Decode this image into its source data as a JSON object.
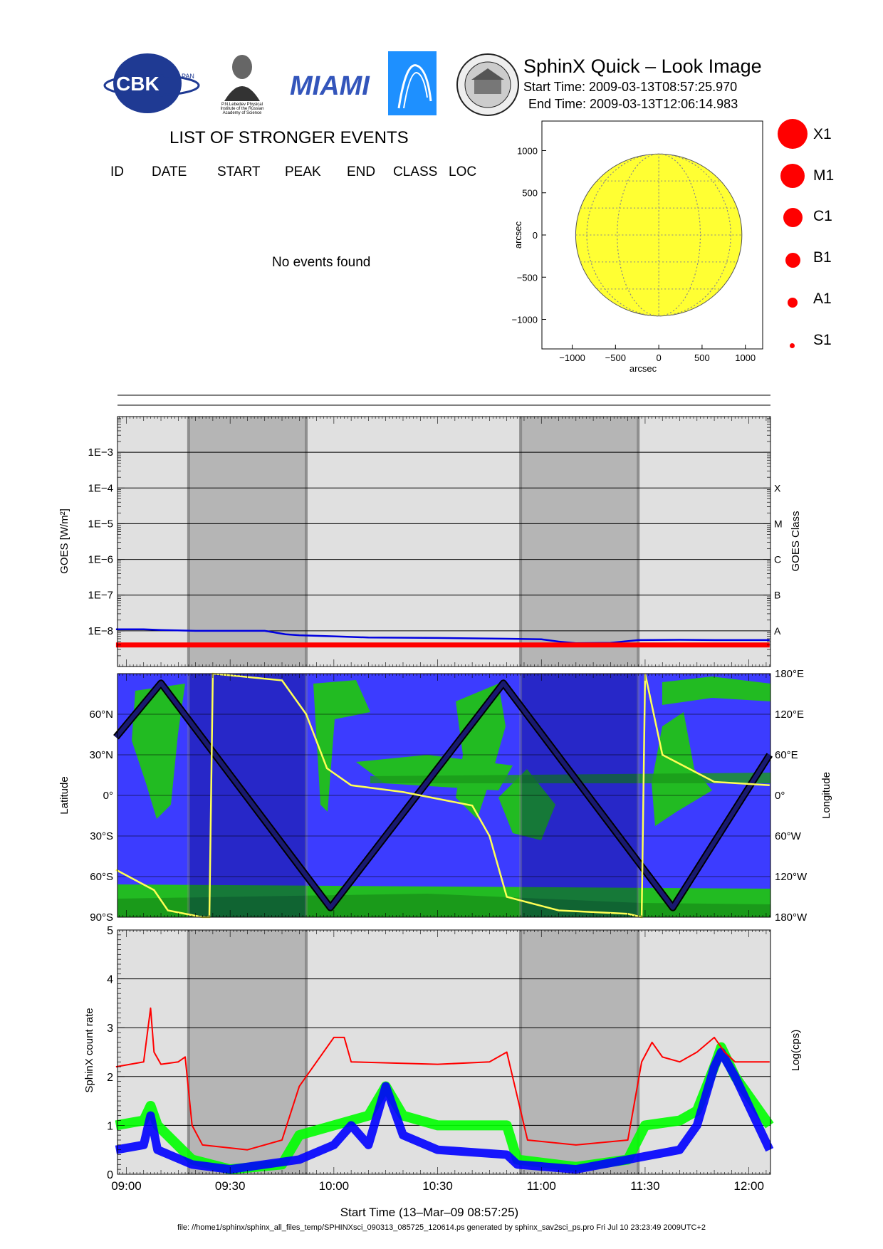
{
  "header": {
    "title": "SphinX Quick – Look Image",
    "start_time": "Start Time: 2009-03-13T08:57:25.970",
    "end_time": "End Time: 2009-03-13T12:06:14.983",
    "logos": {
      "cbk": "CBK",
      "cbk_sub": "PAN",
      "lebedev_caption": [
        "P.N.Lebedev Physical",
        "Institute of the Russian",
        "Academy of Science"
      ],
      "miami": "MIAMI"
    }
  },
  "events": {
    "heading": "LIST OF STRONGER EVENTS",
    "columns": [
      "ID",
      "DATE",
      "START",
      "PEAK",
      "END",
      "CLASS",
      "LOC"
    ],
    "empty_message": "No events found"
  },
  "size_legend": [
    "X1",
    "M1",
    "C1",
    "B1",
    "A1",
    "S1"
  ],
  "colors": {
    "sun_disk": "#ffff33",
    "grid": "#888888",
    "panel_bg": "#e0e0e0",
    "shade": "#b0b0b0",
    "map_ocean": "#3c3cff",
    "map_land": "#22bb22",
    "goes_short": "#ff0000",
    "goes_long": "#0000e0",
    "sphinx_red": "#ff0000",
    "sphinx_green": "#00ff00",
    "sphinx_blue": "#0000ff",
    "orbit_track": "#191970",
    "terminator": "#ffff55"
  },
  "chart_data": [
    {
      "type": "scatter",
      "title": "",
      "xlabel": "arcsec",
      "ylabel": "arcsec",
      "xlim": [
        -1350,
        1200
      ],
      "ylim": [
        -1350,
        1350
      ],
      "xticks": [
        -1000,
        -500,
        0,
        500,
        1000
      ],
      "yticks": [
        1000,
        500,
        0,
        -500,
        -1000
      ],
      "xtick_labels": [
        "−1000",
        "−500",
        "0",
        "500",
        "1000"
      ],
      "ytick_labels": [
        "1000",
        "500",
        "0",
        "−500",
        "−1000"
      ],
      "sun_radius_arcsec": 960,
      "events": []
    },
    {
      "type": "line",
      "xlabel": "",
      "ylabel": "GOES [W/m²]",
      "ylabel_right": "GOES Class",
      "yscale": "log",
      "ylim": [
        1e-09,
        0.01
      ],
      "xlim": [
        "08:57:26",
        "12:06:15"
      ],
      "ytick_labels": [
        "1E−3",
        "1E−4",
        "1E−5",
        "1E−6",
        "1E−7",
        "1E−8"
      ],
      "ytick_values": [
        0.001,
        0.0001,
        1e-05,
        1e-06,
        1e-07,
        1e-08
      ],
      "class_labels": [
        "X",
        "M",
        "C",
        "B",
        "A"
      ],
      "class_values": [
        0.0001,
        1e-05,
        1e-06,
        1e-07,
        1e-08
      ],
      "shaded_intervals": [
        [
          "09:18",
          "09:52"
        ],
        [
          "10:54",
          "11:28"
        ]
      ],
      "series": [
        {
          "x": [
            "08:57",
            "09:05",
            "09:10",
            "09:20",
            "09:30",
            "09:40",
            "09:46",
            "09:50",
            "10:00",
            "10:10",
            "10:30",
            "10:50",
            "11:00",
            "11:05",
            "11:10",
            "11:20",
            "11:28",
            "11:40",
            "11:50",
            "12:06"
          ],
          "values": [
            1.1e-08,
            1.1e-08,
            1.05e-08,
            1e-08,
            1e-08,
            1e-08,
            8e-09,
            7.5e-09,
            7e-09,
            6.5e-09,
            6.3e-09,
            6e-09,
            5.8e-09,
            5e-09,
            4.5e-09,
            4.6e-09,
            5.5e-09,
            5.6e-09,
            5.5e-09,
            5.5e-09
          ]
        },
        {
          "x": [
            "08:57",
            "12:06"
          ],
          "values": [
            4e-09,
            4e-09
          ]
        }
      ]
    },
    {
      "type": "line",
      "xlabel": "",
      "ylabel": "Latitude",
      "ylabel_right": "Longitude",
      "ylim": [
        -90,
        90
      ],
      "ytick_labels": [
        "60°N",
        "30°N",
        "0°",
        "30°S",
        "60°S",
        "90°S"
      ],
      "ytick_values": [
        60,
        30,
        0,
        -30,
        -60,
        -90
      ],
      "ytick_labels_right": [
        "180°E",
        "120°E",
        "60°E",
        "0°",
        "60°W",
        "120°W",
        "180°W"
      ],
      "ytick_values_right": [
        180,
        120,
        60,
        0,
        -60,
        -120,
        -180
      ],
      "shaded_intervals": [
        [
          "09:18",
          "09:52"
        ],
        [
          "10:54",
          "11:28"
        ]
      ],
      "series": [
        {
          "x": [
            "08:57",
            "09:10",
            "09:59",
            "10:49",
            "11:38",
            "12:06"
          ],
          "values": [
            43,
            83,
            -83,
            83,
            -83,
            30
          ]
        },
        {
          "x": [
            "08:57",
            "09:08",
            "09:12",
            "09:22",
            "09:24",
            "09:25",
            "09:45",
            "09:52",
            "09:58",
            "10:05",
            "10:20",
            "10:40",
            "10:45",
            "10:50",
            "11:05",
            "11:25",
            "11:29",
            "11:30",
            "11:35",
            "11:50",
            "12:06"
          ],
          "values": [
            -110,
            -140,
            -170,
            -180,
            -180,
            180,
            170,
            120,
            40,
            15,
            5,
            -15,
            -60,
            -150,
            -170,
            -175,
            -180,
            180,
            60,
            20,
            15
          ]
        }
      ]
    },
    {
      "type": "line",
      "xlabel": "Start Time (13–Mar–09 08:57:25)",
      "ylabel": "SphinX count rate",
      "ylabel_right": "Log(cps)",
      "ylim": [
        0,
        5
      ],
      "xlim": [
        "08:57:26",
        "12:06:15"
      ],
      "ytick_labels": [
        "5",
        "4",
        "3",
        "2",
        "1",
        "0"
      ],
      "ytick_values": [
        5,
        4,
        3,
        2,
        1,
        0
      ],
      "xtick_labels": [
        "09:00",
        "09:30",
        "10:00",
        "10:30",
        "11:00",
        "11:30",
        "12:00"
      ],
      "shaded_intervals": [
        [
          "09:18",
          "09:52"
        ],
        [
          "10:54",
          "11:28"
        ]
      ],
      "series": [
        {
          "x": [
            "08:57",
            "09:05",
            "09:07",
            "09:08",
            "09:10",
            "09:15",
            "09:17",
            "09:19",
            "09:22",
            "09:35",
            "09:45",
            "09:50",
            "09:55",
            "10:00",
            "10:03",
            "10:05",
            "10:30",
            "10:45",
            "10:50",
            "10:53",
            "10:56",
            "11:10",
            "11:25",
            "11:29",
            "11:32",
            "11:35",
            "11:40",
            "11:45",
            "11:50",
            "11:53",
            "11:56",
            "12:06"
          ],
          "values": [
            2.2,
            2.3,
            3.4,
            2.5,
            2.25,
            2.3,
            2.4,
            1.0,
            0.6,
            0.5,
            0.7,
            1.8,
            2.3,
            2.8,
            2.8,
            2.3,
            2.25,
            2.3,
            2.5,
            1.6,
            0.7,
            0.6,
            0.7,
            2.3,
            2.7,
            2.4,
            2.3,
            2.5,
            2.8,
            2.5,
            2.3,
            2.3
          ]
        },
        {
          "x": [
            "08:57",
            "09:05",
            "09:07",
            "09:09",
            "09:19",
            "09:30",
            "09:45",
            "09:50",
            "10:00",
            "10:10",
            "10:15",
            "10:20",
            "10:30",
            "10:50",
            "10:53",
            "11:10",
            "11:25",
            "11:30",
            "11:40",
            "11:45",
            "11:50",
            "11:52",
            "11:56",
            "12:06"
          ],
          "values": [
            1.0,
            1.1,
            1.4,
            1.0,
            0.3,
            0.1,
            0.2,
            0.8,
            1.0,
            1.2,
            1.8,
            1.2,
            1.0,
            1.0,
            0.3,
            0.15,
            0.3,
            1.0,
            1.1,
            1.3,
            2.2,
            2.6,
            2.0,
            1.0
          ]
        },
        {
          "x": [
            "08:57",
            "09:05",
            "09:07",
            "09:09",
            "09:19",
            "09:30",
            "09:50",
            "10:00",
            "10:05",
            "10:10",
            "10:15",
            "10:20",
            "10:30",
            "10:50",
            "10:53",
            "11:10",
            "11:25",
            "11:40",
            "11:45",
            "11:50",
            "11:52",
            "11:56",
            "12:06"
          ],
          "values": [
            0.5,
            0.6,
            1.2,
            0.5,
            0.2,
            0.1,
            0.3,
            0.6,
            1.0,
            0.6,
            1.8,
            0.8,
            0.5,
            0.4,
            0.2,
            0.1,
            0.3,
            0.5,
            1.0,
            2.2,
            2.5,
            2.0,
            0.5
          ]
        }
      ]
    }
  ],
  "footer": "file: //home1/sphinx/sphinx_all_files_temp/SPHINXsci_090313_085725_120614.ps generated by sphinx_sav2sci_ps.pro Fri Jul 10 23:23:49 2009UTC+2"
}
